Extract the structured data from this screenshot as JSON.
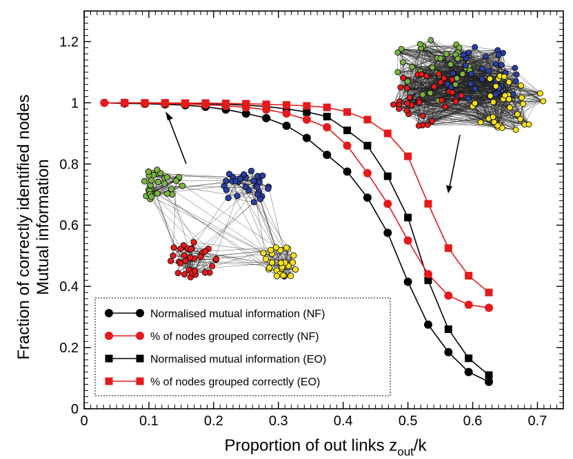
{
  "chart_data": {
    "type": "line",
    "title": "",
    "xlabel": "Proportion of out links z",
    "xlabel_sub": "out",
    "xlabel_suffix": "/k",
    "ylabel_lines": [
      "Fraction of correctly identified nodes",
      "Mutual information"
    ],
    "xlim": [
      0,
      0.74
    ],
    "ylim": [
      0,
      1.3
    ],
    "xticks": [
      0,
      0.1,
      0.2,
      0.3,
      0.4,
      0.5,
      0.6,
      0.7
    ],
    "xtick_labels": [
      "0",
      "0.1",
      "0.2",
      "0.3",
      "0.4",
      "0.5",
      "0.6",
      "0.7"
    ],
    "yticks": [
      0,
      0.2,
      0.4,
      0.6,
      0.8,
      1,
      1.2
    ],
    "ytick_labels": [
      "0",
      "0.2",
      "0.4",
      "0.6",
      "0.8",
      "1",
      "1.2"
    ],
    "grid": false,
    "legend_position": "bottom-left",
    "series": [
      {
        "name": "Normalised mutual information (NF)",
        "color": "#000000",
        "marker": "circle",
        "x": [
          0.03125,
          0.0625,
          0.09375,
          0.125,
          0.15625,
          0.1875,
          0.21875,
          0.25,
          0.28125,
          0.3125,
          0.34375,
          0.375,
          0.40625,
          0.4375,
          0.46875,
          0.5,
          0.53125,
          0.5625,
          0.59375,
          0.625
        ],
        "y": [
          1.0,
          0.998,
          0.997,
          0.995,
          0.992,
          0.987,
          0.978,
          0.965,
          0.95,
          0.925,
          0.885,
          0.83,
          0.775,
          0.69,
          0.575,
          0.415,
          0.275,
          0.185,
          0.12,
          0.088
        ]
      },
      {
        "name": "% of nodes grouped correctly (NF)",
        "color": "#e41a1c",
        "marker": "circle",
        "x": [
          0.03125,
          0.0625,
          0.09375,
          0.125,
          0.15625,
          0.1875,
          0.21875,
          0.25,
          0.28125,
          0.3125,
          0.34375,
          0.375,
          0.40625,
          0.4375,
          0.46875,
          0.5,
          0.53125,
          0.5625,
          0.59375,
          0.625
        ],
        "y": [
          1.0,
          1.0,
          0.999,
          0.998,
          0.996,
          0.994,
          0.99,
          0.985,
          0.978,
          0.965,
          0.945,
          0.92,
          0.86,
          0.77,
          0.67,
          0.55,
          0.44,
          0.37,
          0.34,
          0.33
        ]
      },
      {
        "name": "Normalised mutual information (EO)",
        "color": "#000000",
        "marker": "square",
        "x": [
          0.0625,
          0.09375,
          0.125,
          0.15625,
          0.1875,
          0.21875,
          0.25,
          0.28125,
          0.3125,
          0.34375,
          0.375,
          0.40625,
          0.4375,
          0.46875,
          0.5,
          0.53125,
          0.5625,
          0.59375,
          0.625
        ],
        "y": [
          1.0,
          0.999,
          0.999,
          0.998,
          0.997,
          0.995,
          0.992,
          0.988,
          0.98,
          0.97,
          0.955,
          0.91,
          0.86,
          0.76,
          0.625,
          0.42,
          0.26,
          0.165,
          0.11
        ]
      },
      {
        "name": "% of nodes grouped correctly (EO)",
        "color": "#e41a1c",
        "marker": "square",
        "x": [
          0.0625,
          0.09375,
          0.125,
          0.15625,
          0.1875,
          0.21875,
          0.25,
          0.28125,
          0.3125,
          0.34375,
          0.375,
          0.40625,
          0.4375,
          0.46875,
          0.5,
          0.53125,
          0.5625,
          0.59375,
          0.625
        ],
        "y": [
          1.0,
          1.0,
          1.0,
          0.999,
          0.999,
          0.998,
          0.997,
          0.995,
          0.993,
          0.99,
          0.985,
          0.97,
          0.945,
          0.9,
          0.825,
          0.67,
          0.525,
          0.435,
          0.38
        ]
      }
    ],
    "insets": [
      {
        "name": "clustered-network",
        "community_colors": [
          "#7cb342",
          "#2b3fa0",
          "#e41a1c",
          "#f5e21b"
        ]
      },
      {
        "name": "mixed-network",
        "community_colors": [
          "#7cb342",
          "#2b3fa0",
          "#e41a1c",
          "#f5e21b"
        ]
      }
    ]
  }
}
